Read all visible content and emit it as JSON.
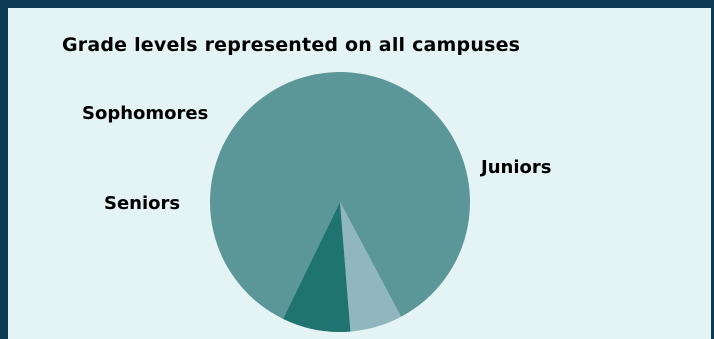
{
  "chart_data": {
    "type": "pie",
    "title": "Grade levels represented on all campuses",
    "slices": [
      {
        "label": "Juniors",
        "value": 85,
        "color": "#5b9698"
      },
      {
        "label": "Seniors",
        "value": 6.5,
        "color": "#8fb7bd"
      },
      {
        "label": "Sophomores",
        "value": 8.5,
        "color": "#1f7370"
      }
    ],
    "start_angle_deg": 116,
    "direction": "clockwise",
    "legend": "none"
  }
}
